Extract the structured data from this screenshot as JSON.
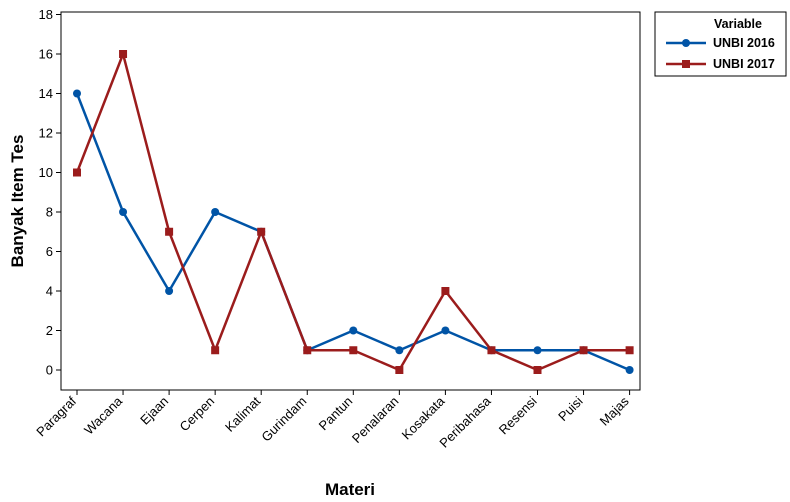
{
  "chart_data": {
    "type": "line",
    "xlabel": "Materi",
    "ylabel": "Banyak Item Tes",
    "categories": [
      "Paragraf",
      "Wacana",
      "Ejaan",
      "Cerpen",
      "Kalimat",
      "Gurindam",
      "Pantun",
      "Penalaran",
      "Kosakata",
      "Peribahasa",
      "Resensi",
      "Puisi",
      "Majas"
    ],
    "ylim": [
      -1,
      18
    ],
    "yticks": [
      "0",
      "2",
      "4",
      "6",
      "8",
      "10",
      "12",
      "14",
      "16",
      "18"
    ],
    "grid": false,
    "legend": {
      "title": "Variable",
      "position": "outside-top-right"
    },
    "series": [
      {
        "name": "UNBI 2016",
        "color": "#0054a6",
        "marker": "circle",
        "values": [
          14,
          8,
          4,
          8,
          7,
          1,
          2,
          1,
          2,
          1,
          1,
          1,
          0
        ]
      },
      {
        "name": "UNBI 2017",
        "color": "#9b1c1c",
        "marker": "square",
        "values": [
          10,
          16,
          7,
          1,
          7,
          1,
          1,
          0,
          4,
          1,
          0,
          1,
          1
        ]
      }
    ]
  }
}
